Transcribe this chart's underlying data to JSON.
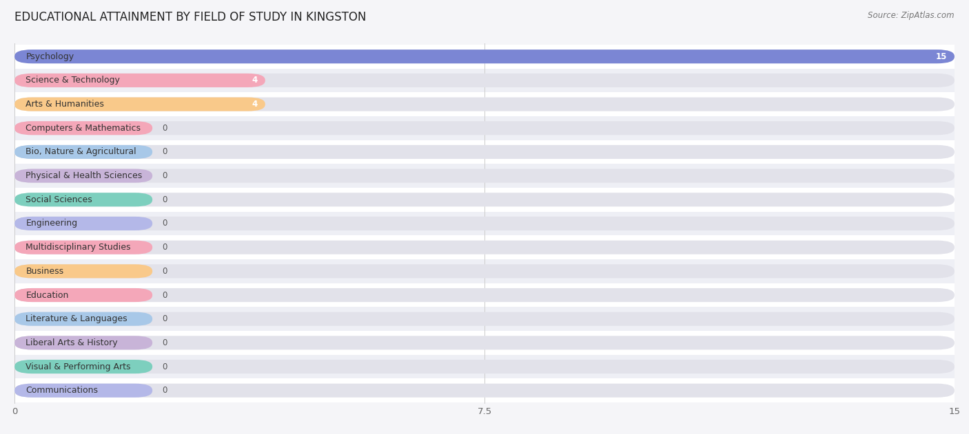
{
  "title": "EDUCATIONAL ATTAINMENT BY FIELD OF STUDY IN KINGSTON",
  "source": "Source: ZipAtlas.com",
  "categories": [
    "Psychology",
    "Science & Technology",
    "Arts & Humanities",
    "Computers & Mathematics",
    "Bio, Nature & Agricultural",
    "Physical & Health Sciences",
    "Social Sciences",
    "Engineering",
    "Multidisciplinary Studies",
    "Business",
    "Education",
    "Literature & Languages",
    "Liberal Arts & History",
    "Visual & Performing Arts",
    "Communications"
  ],
  "values": [
    15,
    4,
    4,
    0,
    0,
    0,
    0,
    0,
    0,
    0,
    0,
    0,
    0,
    0,
    0
  ],
  "colors": [
    "#7b86d4",
    "#f4a7b9",
    "#f9c98a",
    "#f4a7b9",
    "#a8c8e8",
    "#c8b4d8",
    "#7dcfbe",
    "#b4b8e8",
    "#f4a7b9",
    "#f9c98a",
    "#f4a7b9",
    "#a8c8e8",
    "#c8b4d8",
    "#7dcfbe",
    "#b4b8e8"
  ],
  "xlim": [
    0,
    15
  ],
  "xticks": [
    0,
    7.5,
    15
  ],
  "background_color": "#f5f5f8",
  "row_colors": [
    "#ffffff",
    "#eeeff5"
  ],
  "bar_bg_color": "#e2e2ea",
  "title_fontsize": 12,
  "label_fontsize": 9,
  "value_fontsize": 8.5,
  "min_bar_width": 2.2
}
